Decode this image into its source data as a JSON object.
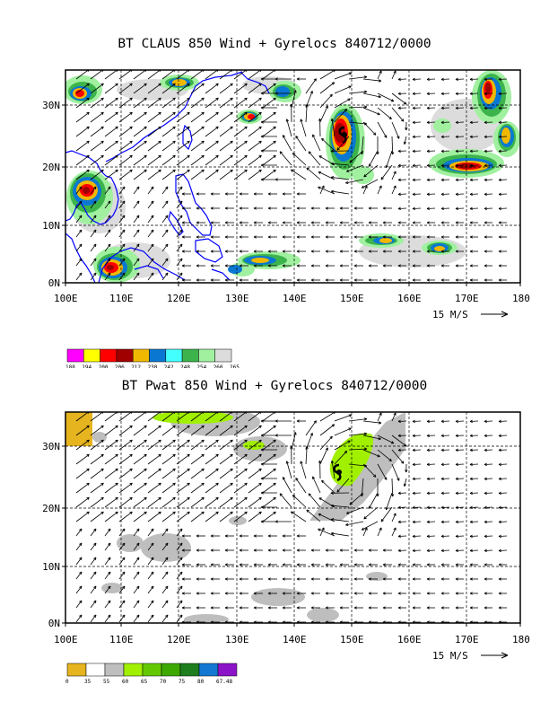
{
  "panels": [
    {
      "title": "BT CLAUS 850 Wind + Gyrelocs 840712/0000",
      "lat_labels": [
        "30N",
        "20N",
        "10N",
        "0N"
      ],
      "lon_labels": [
        "100E",
        "110E",
        "120E",
        "130E",
        "140E",
        "150E",
        "160E",
        "170E",
        "180"
      ],
      "vector_scale_label": "15 M/S",
      "legend": {
        "colors": [
          "#ff00ff",
          "#ffff00",
          "#ff0000",
          "#a00000",
          "#f0b800",
          "#0a78d2",
          "#44ffff",
          "#3cb44b",
          "#a0f0a0",
          "#dcdcdc"
        ],
        "labels": [
          "188",
          "194",
          "200",
          "206",
          "212",
          "230",
          "242",
          "248",
          "254",
          "260",
          "265"
        ]
      }
    },
    {
      "title": "BT Pwat 850 Wind + Gyrelocs 840712/0000",
      "lat_labels": [
        "30N",
        "20N",
        "10N",
        "0N"
      ],
      "lon_labels": [
        "100E",
        "110E",
        "120E",
        "130E",
        "140E",
        "150E",
        "160E",
        "170E",
        "180"
      ],
      "vector_scale_label": "15 M/S",
      "legend": {
        "colors": [
          "#e6b41e",
          "#ffffff",
          "#bebebe",
          "#a0f000",
          "#64c800",
          "#3ca800",
          "#1e7e1e",
          "#1478d2",
          "#8c14c8"
        ],
        "labels": [
          "0",
          "35",
          "55",
          "60",
          "65",
          "70",
          "75",
          "80",
          "67.48"
        ]
      }
    }
  ],
  "cyclone_symbol": "tropical-cyclone-icon",
  "coastline_color": "#0000ff"
}
